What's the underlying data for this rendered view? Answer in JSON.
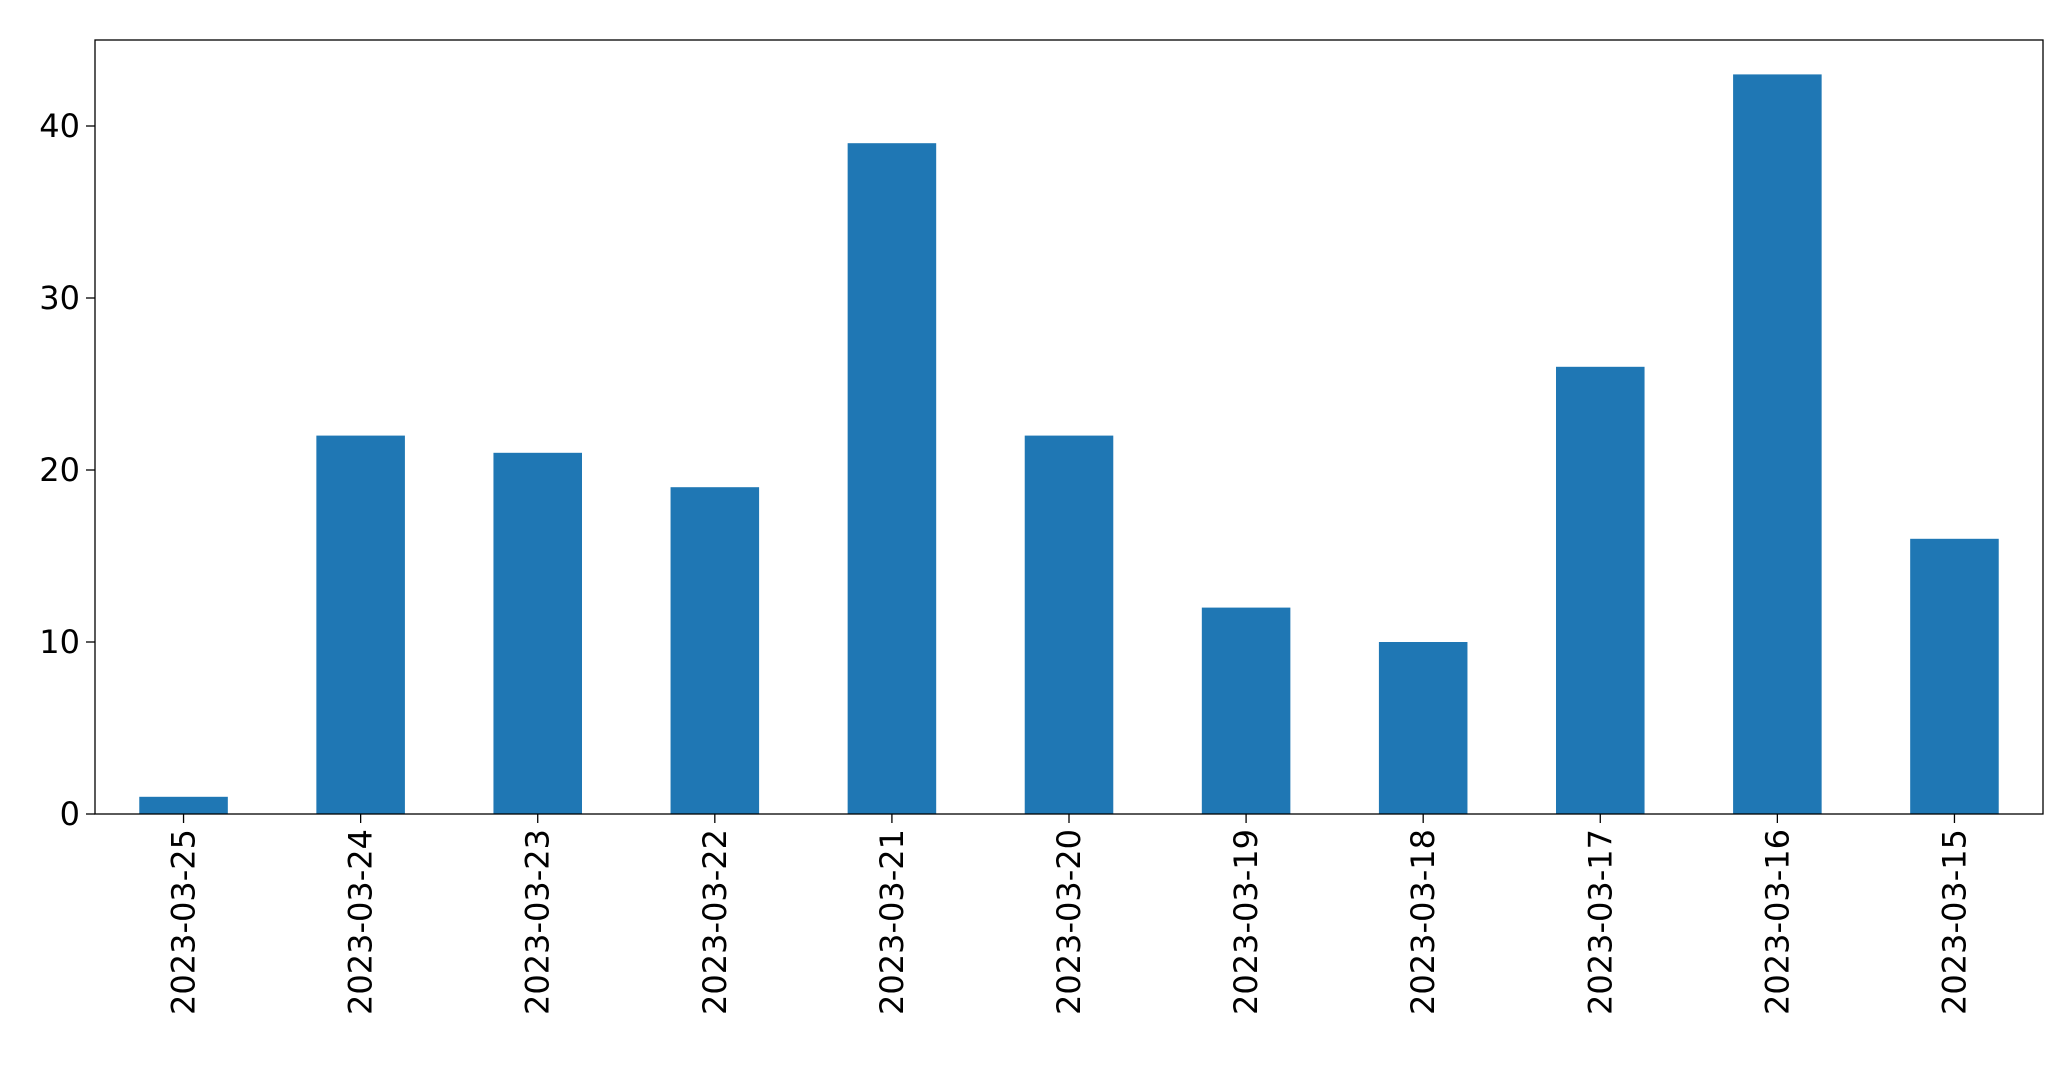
{
  "chart_data": {
    "type": "bar",
    "title": "",
    "xlabel": "",
    "ylabel": "",
    "categories": [
      "2023-03-25",
      "2023-03-24",
      "2023-03-23",
      "2023-03-22",
      "2023-03-21",
      "2023-03-20",
      "2023-03-19",
      "2023-03-18",
      "2023-03-17",
      "2023-03-16",
      "2023-03-15"
    ],
    "values": [
      1,
      22,
      21,
      19,
      39,
      22,
      12,
      10,
      26,
      43,
      16
    ],
    "ylim": [
      0,
      45
    ],
    "yticks": [
      0,
      10,
      20,
      30,
      40
    ],
    "bar_color": "#1f77b4",
    "grid": false,
    "legend": "none"
  }
}
